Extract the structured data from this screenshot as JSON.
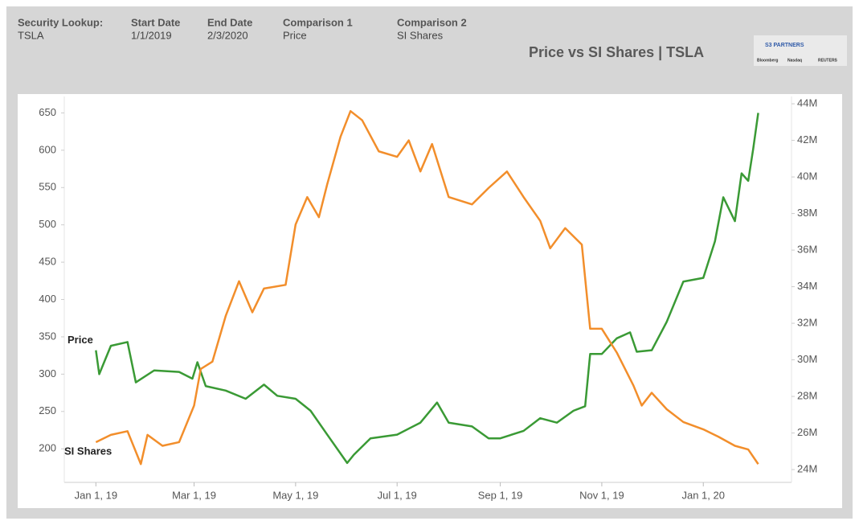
{
  "header": {
    "fields": [
      {
        "label": "Security Lookup:",
        "value": "TSLA"
      },
      {
        "label": "Start Date",
        "value": "1/1/2019"
      },
      {
        "label": "End Date",
        "value": "2/3/2020"
      },
      {
        "label": "Comparison 1",
        "value": "Price"
      },
      {
        "label": "Comparison 2",
        "value": "SI Shares"
      }
    ],
    "logo": [
      "S3 PARTNERS",
      "Bloomberg",
      "Nasdaq",
      "REUTERS"
    ]
  },
  "chart_data": {
    "type": "line",
    "title": "Price vs SI Shares | TSLA",
    "xlim": [
      "2018-12-13",
      "2020-02-23"
    ],
    "xticks": [
      {
        "value": "2019-01-01",
        "label": "Jan 1, 19"
      },
      {
        "value": "2019-03-01",
        "label": "Mar 1, 19"
      },
      {
        "value": "2019-05-01",
        "label": "May 1, 19"
      },
      {
        "value": "2019-07-01",
        "label": "Jul 1, 19"
      },
      {
        "value": "2019-09-01",
        "label": "Sep 1, 19"
      },
      {
        "value": "2019-11-01",
        "label": "Nov 1, 19"
      },
      {
        "value": "2020-01-01",
        "label": "Jan 1, 20"
      }
    ],
    "ylim": [
      155,
      672
    ],
    "yticks": [
      200,
      250,
      300,
      350,
      400,
      450,
      500,
      550,
      600,
      650
    ],
    "y2lim": [
      23300000,
      44400000
    ],
    "y2ticks": [
      {
        "value": 24000000,
        "label": "24M"
      },
      {
        "value": 26000000,
        "label": "26M"
      },
      {
        "value": 28000000,
        "label": "28M"
      },
      {
        "value": 30000000,
        "label": "30M"
      },
      {
        "value": 32000000,
        "label": "32M"
      },
      {
        "value": 34000000,
        "label": "34M"
      },
      {
        "value": 36000000,
        "label": "36M"
      },
      {
        "value": 38000000,
        "label": "38M"
      },
      {
        "value": 40000000,
        "label": "40M"
      },
      {
        "value": 42000000,
        "label": "42M"
      },
      {
        "value": 44000000,
        "label": "44M"
      }
    ],
    "series": [
      {
        "name": "Price",
        "color": "#3a9a35",
        "axis": "y",
        "x": [
          "2019-01-01",
          "2019-01-03",
          "2019-01-10",
          "2019-01-20",
          "2019-01-25",
          "2019-02-05",
          "2019-02-20",
          "2019-02-28",
          "2019-03-03",
          "2019-03-08",
          "2019-03-20",
          "2019-04-01",
          "2019-04-12",
          "2019-04-20",
          "2019-05-01",
          "2019-05-10",
          "2019-05-20",
          "2019-06-01",
          "2019-06-05",
          "2019-06-15",
          "2019-07-01",
          "2019-07-15",
          "2019-07-25",
          "2019-08-01",
          "2019-08-15",
          "2019-08-25",
          "2019-09-01",
          "2019-09-15",
          "2019-09-25",
          "2019-10-05",
          "2019-10-15",
          "2019-10-22",
          "2019-10-25",
          "2019-11-01",
          "2019-11-10",
          "2019-11-18",
          "2019-11-22",
          "2019-12-01",
          "2019-12-10",
          "2019-12-20",
          "2020-01-01",
          "2020-01-08",
          "2020-01-13",
          "2020-01-20",
          "2020-01-24",
          "2020-01-28",
          "2020-01-31",
          "2020-02-03"
        ],
        "values": [
          332,
          300,
          338,
          343,
          289,
          305,
          303,
          294,
          316,
          284,
          278,
          267,
          286,
          271,
          267,
          251,
          219,
          181,
          192,
          214,
          219,
          235,
          262,
          235,
          230,
          214,
          214,
          224,
          241,
          235,
          251,
          257,
          327,
          327,
          348,
          356,
          330,
          332,
          370,
          424,
          429,
          478,
          537,
          505,
          569,
          559,
          602,
          650
        ]
      },
      {
        "name": "SI Shares",
        "color": "#f28e2b",
        "axis": "y2",
        "x": [
          "2019-01-01",
          "2019-01-10",
          "2019-01-20",
          "2019-01-28",
          "2019-02-01",
          "2019-02-10",
          "2019-02-20",
          "2019-03-01",
          "2019-03-05",
          "2019-03-12",
          "2019-03-20",
          "2019-03-28",
          "2019-04-05",
          "2019-04-12",
          "2019-04-25",
          "2019-05-01",
          "2019-05-08",
          "2019-05-15",
          "2019-05-20",
          "2019-05-28",
          "2019-06-03",
          "2019-06-10",
          "2019-06-20",
          "2019-07-01",
          "2019-07-08",
          "2019-07-15",
          "2019-07-22",
          "2019-08-01",
          "2019-08-15",
          "2019-08-25",
          "2019-09-05",
          "2019-09-15",
          "2019-09-25",
          "2019-10-01",
          "2019-10-10",
          "2019-10-20",
          "2019-10-25",
          "2019-11-01",
          "2019-11-10",
          "2019-11-20",
          "2019-11-25",
          "2019-12-01",
          "2019-12-10",
          "2019-12-20",
          "2020-01-01",
          "2020-01-10",
          "2020-01-20",
          "2020-01-28",
          "2020-02-03"
        ],
        "values": [
          25500000,
          25900000,
          26100000,
          24300000,
          25900000,
          25300000,
          25500000,
          27500000,
          29500000,
          29900000,
          32400000,
          34300000,
          32600000,
          33900000,
          34100000,
          37400000,
          38900000,
          37800000,
          39600000,
          42200000,
          43600000,
          43100000,
          41400000,
          41100000,
          42000000,
          40300000,
          41800000,
          38900000,
          38500000,
          39400000,
          40300000,
          38900000,
          37600000,
          36100000,
          37200000,
          36300000,
          31700000,
          31700000,
          30400000,
          28600000,
          27500000,
          28200000,
          27300000,
          26600000,
          26200000,
          25800000,
          25300000,
          25100000,
          24300000
        ]
      }
    ]
  }
}
